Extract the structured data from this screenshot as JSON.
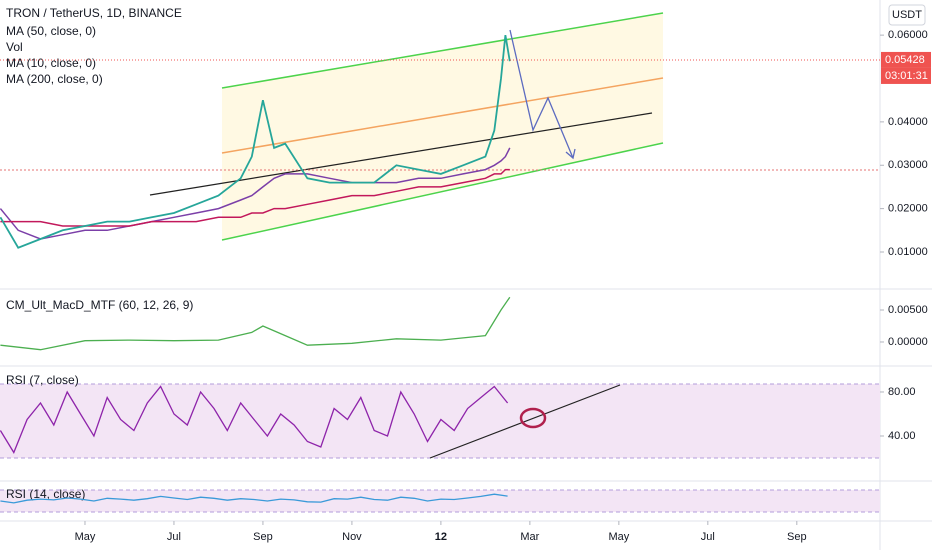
{
  "chart_data": [
    {
      "type": "line",
      "title": "TRON / TetherUS, 1D, BINANCE",
      "currency": "USDT",
      "countdown": "03:01:31",
      "last_price": 0.05428,
      "indicators": [
        "Vol",
        "MA (10, close, 0)"
      ],
      "x": [
        2.1,
        2.5,
        3,
        3.5,
        4,
        4.5,
        5,
        5.5,
        6,
        6.5,
        7,
        7.5,
        7.75,
        8,
        8.25,
        8.5,
        9,
        9.5,
        10,
        10.5,
        11,
        11.5,
        12,
        12.5,
        13,
        13.2,
        13.35,
        13.45,
        13.55
      ],
      "values": [
        0.018,
        0.011,
        0.013,
        0.015,
        0.016,
        0.017,
        0.017,
        0.018,
        0.019,
        0.021,
        0.023,
        0.027,
        0.032,
        0.045,
        0.034,
        0.035,
        0.027,
        0.026,
        0.026,
        0.026,
        0.03,
        0.029,
        0.028,
        0.03,
        0.032,
        0.038,
        0.05,
        0.06,
        0.054
      ],
      "color": "#26a69a",
      "series": [
        {
          "name": "MA (50, close, 0)",
          "color": "#7b3fa8",
          "values": [
            0.02,
            0.015,
            0.013,
            0.014,
            0.015,
            0.015,
            0.016,
            0.017,
            0.018,
            0.019,
            0.02,
            0.022,
            0.023,
            0.025,
            0.027,
            0.028,
            0.028,
            0.027,
            0.026,
            0.026,
            0.026,
            0.027,
            0.027,
            0.028,
            0.029,
            0.03,
            0.031,
            0.032,
            0.034
          ]
        },
        {
          "name": "MA (200, close, 0)",
          "color": "#c2185b",
          "values": [
            0.017,
            0.017,
            0.017,
            0.016,
            0.016,
            0.016,
            0.016,
            0.017,
            0.017,
            0.017,
            0.018,
            0.018,
            0.019,
            0.019,
            0.02,
            0.02,
            0.021,
            0.022,
            0.023,
            0.023,
            0.024,
            0.025,
            0.025,
            0.026,
            0.027,
            0.028,
            0.028,
            0.029,
            0.029
          ]
        }
      ],
      "xlim": [
        2.09,
        21.87
      ],
      "xticks": [
        {
          "value": 4,
          "label": "May"
        },
        {
          "value": 6,
          "label": "Jul"
        },
        {
          "value": 8,
          "label": "Sep"
        },
        {
          "value": 10,
          "label": "Nov"
        },
        12,
        {
          "value": 14,
          "label": "Mar"
        },
        {
          "value": 16,
          "label": "May"
        },
        {
          "value": 18,
          "label": "Jul"
        },
        {
          "value": 20,
          "label": "Sep"
        }
      ],
      "ylim": [
        0.0017,
        0.0681
      ],
      "yticks": [
        {
          "value": 0.06,
          "label": "0.06000"
        },
        {
          "value": 0.04,
          "label": "0.04000"
        },
        {
          "value": 0.03,
          "label": "0.03000"
        },
        {
          "value": 0.02,
          "label": "0.02000"
        },
        {
          "value": 0.01,
          "label": "0.01000"
        }
      ]
    },
    {
      "type": "line",
      "title": "CM_Ult_MacD_MTF (60, 12, 26, 9)",
      "x": [
        2.1,
        3,
        4,
        5,
        6,
        7,
        7.75,
        8,
        8.5,
        9,
        10,
        11,
        12,
        13,
        13.35,
        13.55
      ],
      "values": [
        -0.0005,
        -0.0012,
        0.0002,
        0.0003,
        0.0002,
        0.0003,
        0.0015,
        0.0025,
        0.001,
        -0.0005,
        -0.0002,
        0.0005,
        0.0003,
        0.001,
        0.005,
        0.007
      ],
      "color": "#4caf50",
      "xlim": [
        2.09,
        21.87
      ],
      "ylim": [
        -0.0036,
        0.00813
      ],
      "yticks": [
        {
          "value": 0.005,
          "label": "0.00500"
        },
        {
          "value": 0,
          "label": "0.00000"
        }
      ]
    },
    {
      "type": "line",
      "title": "RSI (7, close)",
      "x": [
        2.1,
        2.4,
        2.7,
        3,
        3.3,
        3.6,
        3.9,
        4.2,
        4.5,
        4.8,
        5.1,
        5.4,
        5.7,
        6,
        6.3,
        6.6,
        6.9,
        7.2,
        7.5,
        7.8,
        8.1,
        8.4,
        8.7,
        9,
        9.3,
        9.6,
        9.9,
        10.2,
        10.5,
        10.8,
        11.1,
        11.4,
        11.7,
        12,
        12.3,
        12.6,
        12.9,
        13.2,
        13.5
      ],
      "values": [
        45,
        25,
        55,
        70,
        50,
        80,
        60,
        40,
        75,
        55,
        45,
        70,
        85,
        60,
        50,
        80,
        65,
        45,
        70,
        55,
        40,
        60,
        50,
        35,
        30,
        65,
        55,
        75,
        45,
        40,
        80,
        60,
        35,
        55,
        45,
        65,
        75,
        85,
        70
      ],
      "color": "#8e24aa",
      "xlim": [
        2.09,
        21.87
      ],
      "ylim": [
        0,
        102.7
      ],
      "yticks": [
        {
          "value": 80,
          "label": "80.00"
        },
        {
          "value": 40,
          "label": "40.00"
        }
      ]
    },
    {
      "type": "line",
      "title": "RSI (14, close)",
      "x": [
        2.1,
        2.4,
        2.7,
        3,
        3.3,
        3.6,
        3.9,
        4.2,
        4.5,
        4.8,
        5.1,
        5.4,
        5.7,
        6,
        6.3,
        6.6,
        6.9,
        7.2,
        7.5,
        7.8,
        8.1,
        8.4,
        8.7,
        9,
        9.3,
        9.6,
        9.9,
        10.2,
        10.5,
        10.8,
        11.1,
        11.4,
        11.7,
        12,
        12.3,
        12.6,
        12.9,
        13.2,
        13.5
      ],
      "values": [
        50,
        45,
        52,
        55,
        53,
        58,
        55,
        50,
        57,
        55,
        52,
        56,
        62,
        58,
        54,
        60,
        57,
        52,
        56,
        54,
        50,
        55,
        53,
        48,
        47,
        56,
        55,
        60,
        54,
        52,
        60,
        57,
        50,
        55,
        54,
        58,
        62,
        68,
        63
      ],
      "color": "#3a9ad9",
      "xlim": [
        2.09,
        21.87
      ],
      "ylim": [
        0,
        100
      ]
    }
  ]
}
